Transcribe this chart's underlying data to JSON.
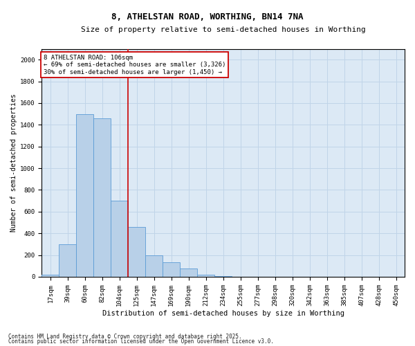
{
  "title_line1": "8, ATHELSTAN ROAD, WORTHING, BN14 7NA",
  "title_line2": "Size of property relative to semi-detached houses in Worthing",
  "xlabel": "Distribution of semi-detached houses by size in Worthing",
  "ylabel": "Number of semi-detached properties",
  "footnote1": "Contains HM Land Registry data © Crown copyright and database right 2025.",
  "footnote2": "Contains public sector information licensed under the Open Government Licence v3.0.",
  "annotation_line1": "8 ATHELSTAN ROAD: 106sqm",
  "annotation_line2": "← 69% of semi-detached houses are smaller (3,326)",
  "annotation_line3": "30% of semi-detached houses are larger (1,450) →",
  "bar_color": "#b8d0e8",
  "bar_edge_color": "#5b9bd5",
  "grid_color": "#c0d4e8",
  "background_color": "#dce9f5",
  "redline_color": "#cc0000",
  "categories": [
    "17sqm",
    "39sqm",
    "60sqm",
    "82sqm",
    "104sqm",
    "125sqm",
    "147sqm",
    "169sqm",
    "190sqm",
    "212sqm",
    "234sqm",
    "255sqm",
    "277sqm",
    "298sqm",
    "320sqm",
    "342sqm",
    "363sqm",
    "385sqm",
    "407sqm",
    "428sqm",
    "450sqm"
  ],
  "values": [
    18,
    300,
    1500,
    1460,
    700,
    460,
    200,
    135,
    75,
    20,
    5,
    2,
    0,
    0,
    0,
    0,
    0,
    0,
    0,
    0,
    0
  ],
  "ylim": [
    0,
    2100
  ],
  "yticks": [
    0,
    200,
    400,
    600,
    800,
    1000,
    1200,
    1400,
    1600,
    1800,
    2000
  ],
  "redline_x": 4.5,
  "title1_fontsize": 9,
  "title2_fontsize": 8,
  "ylabel_fontsize": 7,
  "xlabel_fontsize": 7.5,
  "tick_fontsize": 6.5,
  "annot_fontsize": 6.5,
  "footnote_fontsize": 5.5
}
